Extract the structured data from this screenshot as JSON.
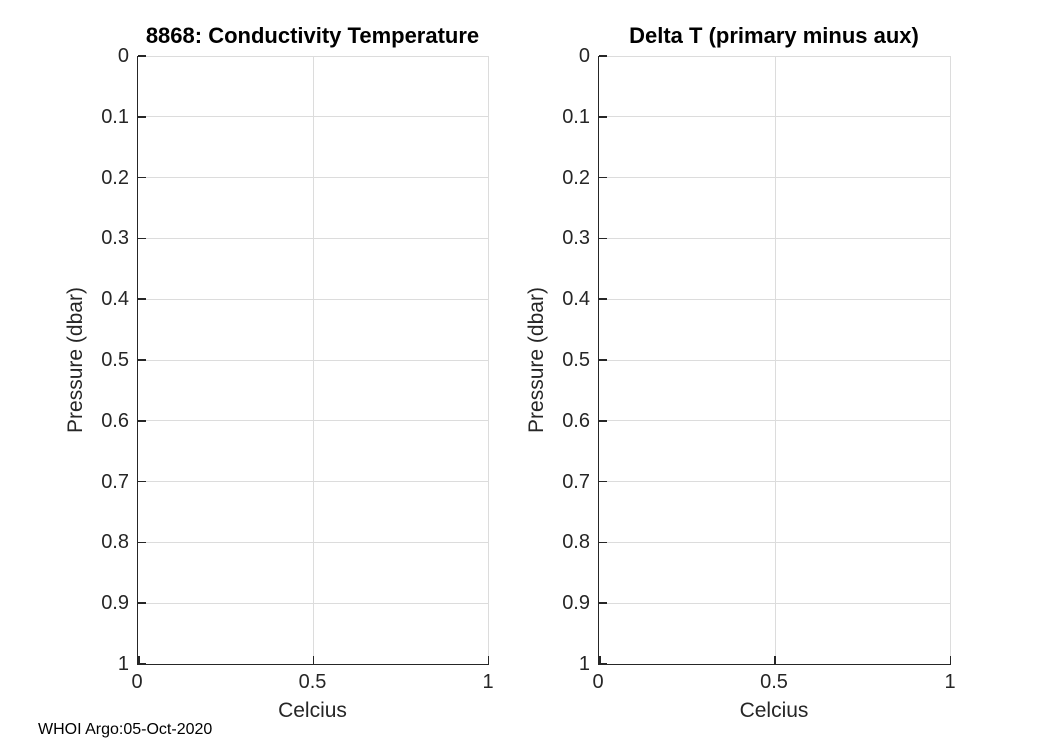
{
  "figure": {
    "background": "#ffffff",
    "axis_color": "#262626",
    "grid_color": "#dcdcdc",
    "text_color": "#262626"
  },
  "footer": {
    "text": "WHOI Argo:05-Oct-2020"
  },
  "chart_data": [
    {
      "type": "line",
      "title": "8868: Conductivity Temperature",
      "xlabel": "Celcius",
      "ylabel": "Pressure (dbar)",
      "xlim": [
        0,
        1
      ],
      "ylim": [
        0,
        1
      ],
      "y_axis_direction": "reversed (0 at top, 1 at bottom)",
      "xticks": [
        0,
        0.5,
        1
      ],
      "yticks": [
        0,
        0.1,
        0.2,
        0.3,
        0.4,
        0.5,
        0.6,
        0.7,
        0.8,
        0.9,
        1
      ],
      "grid": true,
      "legend_position": "none",
      "series": []
    },
    {
      "type": "line",
      "title": "Delta T (primary minus aux)",
      "xlabel": "Celcius",
      "ylabel": "Pressure (dbar)",
      "xlim": [
        0,
        1
      ],
      "ylim": [
        0,
        1
      ],
      "y_axis_direction": "reversed (0 at top, 1 at bottom)",
      "xticks": [
        0,
        0.5,
        1
      ],
      "yticks": [
        0,
        0.1,
        0.2,
        0.3,
        0.4,
        0.5,
        0.6,
        0.7,
        0.8,
        0.9,
        1
      ],
      "grid": true,
      "legend_position": "none",
      "series": []
    }
  ]
}
